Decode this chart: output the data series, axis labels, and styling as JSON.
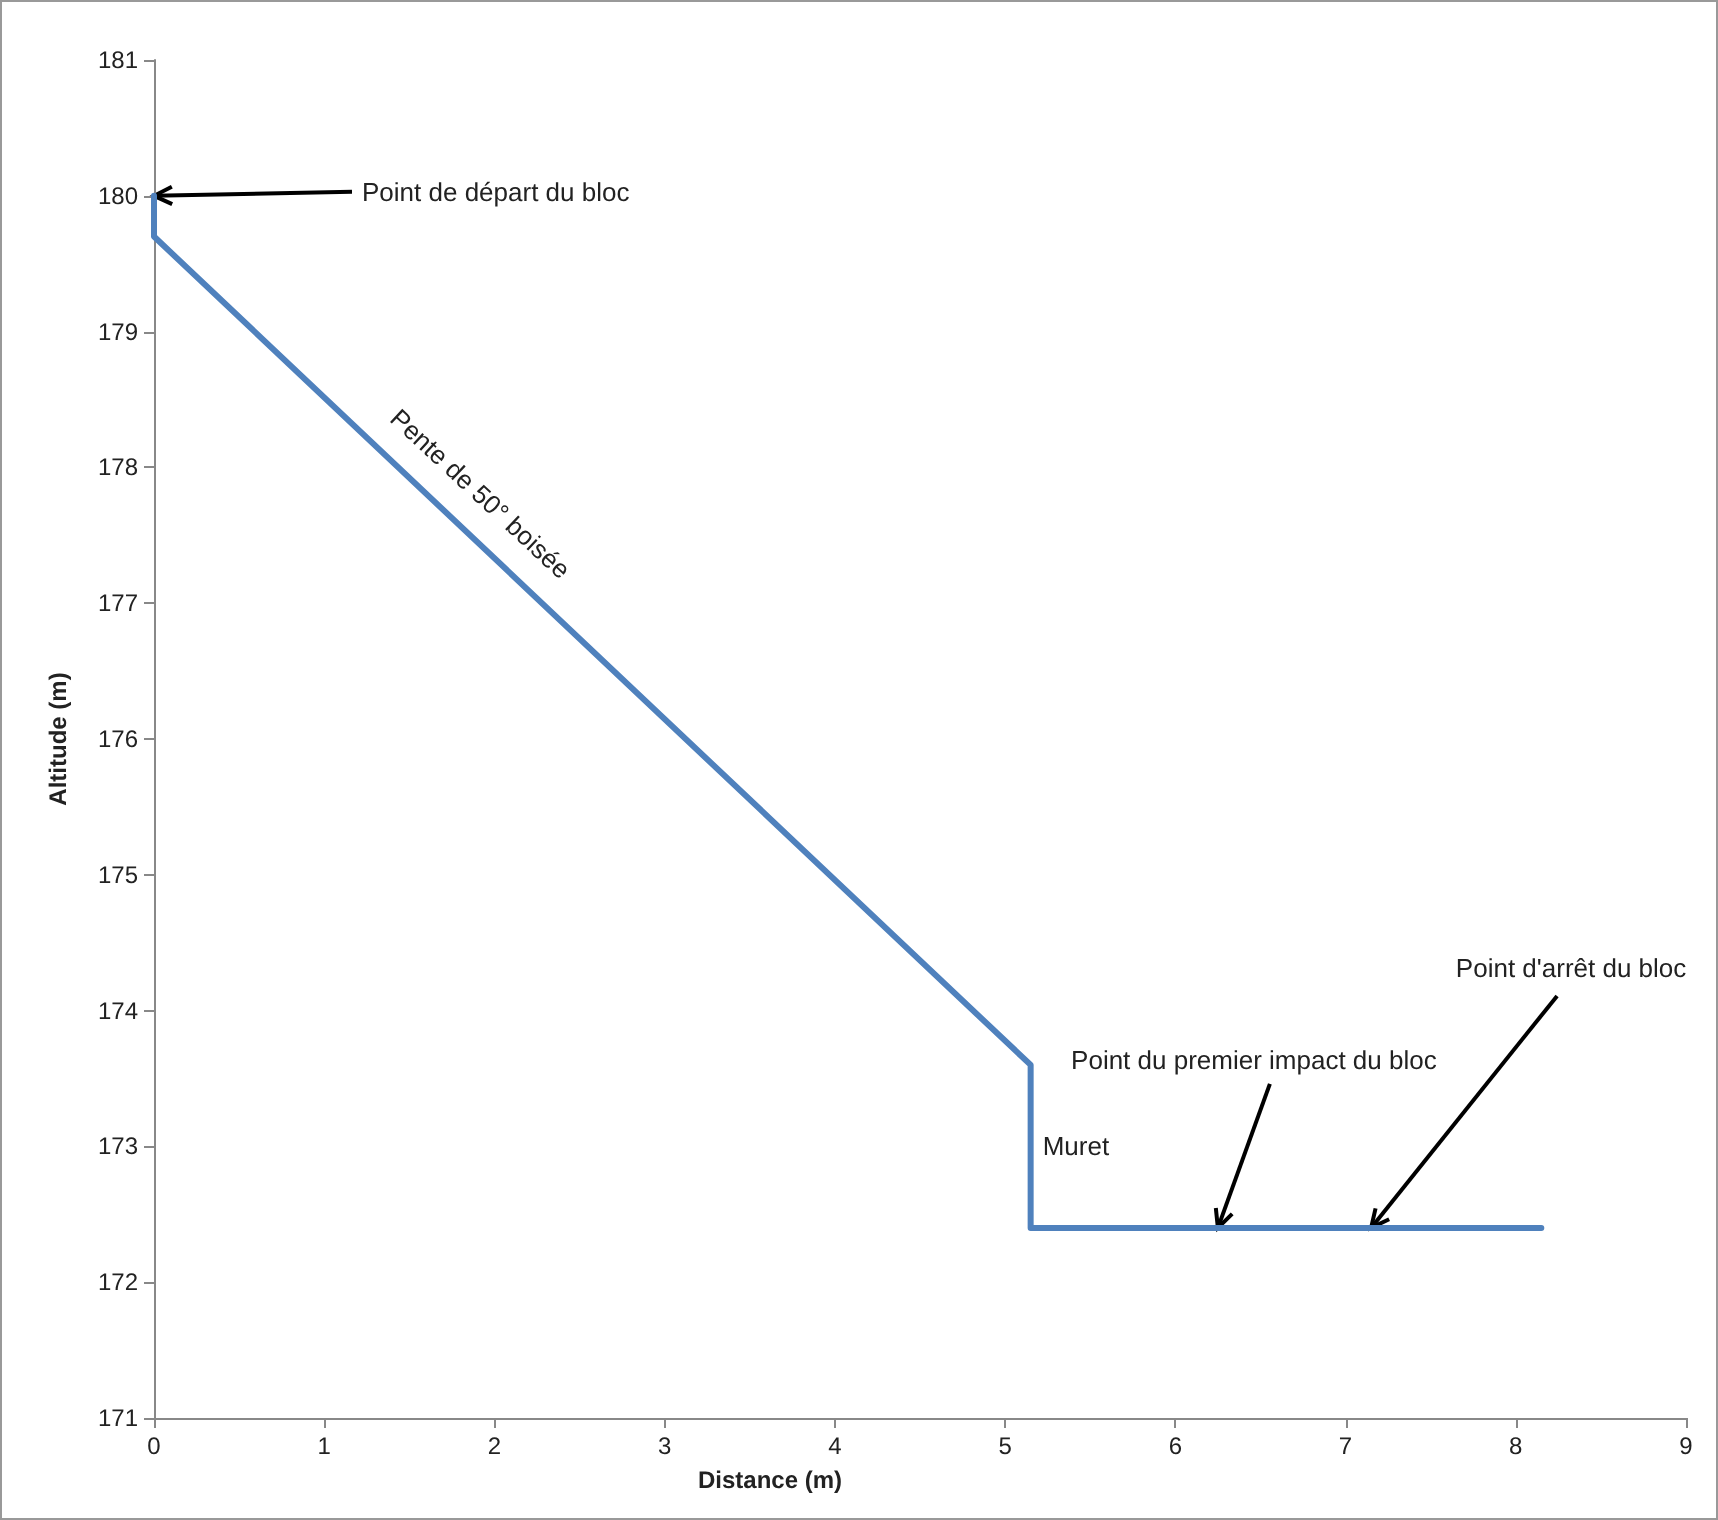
{
  "chart_data": {
    "type": "line",
    "xlabel": "Distance (m)",
    "ylabel": "Altitude (m)",
    "x": [
      0,
      0,
      5.15,
      5.15,
      8.15
    ],
    "series": [
      {
        "color": "#4f81bd",
        "values": [
          180,
          179.7,
          173.6,
          172.4,
          172.4
        ]
      }
    ],
    "xlim": [
      0,
      9
    ],
    "xticks": [
      0,
      1,
      2,
      3,
      4,
      5,
      6,
      7,
      8,
      9
    ],
    "ylim": [
      171,
      181
    ],
    "yticks": [
      171,
      172,
      173,
      174,
      175,
      176,
      177,
      178,
      179,
      180,
      181
    ],
    "grid": false,
    "marker": "none",
    "line_style": "solid",
    "annotations": [
      {
        "text": "Point de départ du bloc",
        "x": 0,
        "y": 180
      },
      {
        "text": "Pente de 50° boisée",
        "x": 1.8,
        "y": 177.6
      },
      {
        "text": "Muret",
        "x": 5.15,
        "y": 173
      },
      {
        "text": "Point du premier impact du bloc",
        "x": 6.25,
        "y": 172.4
      },
      {
        "text": "Point d'arrêt du bloc",
        "x": 7.15,
        "y": 172.4
      }
    ]
  }
}
